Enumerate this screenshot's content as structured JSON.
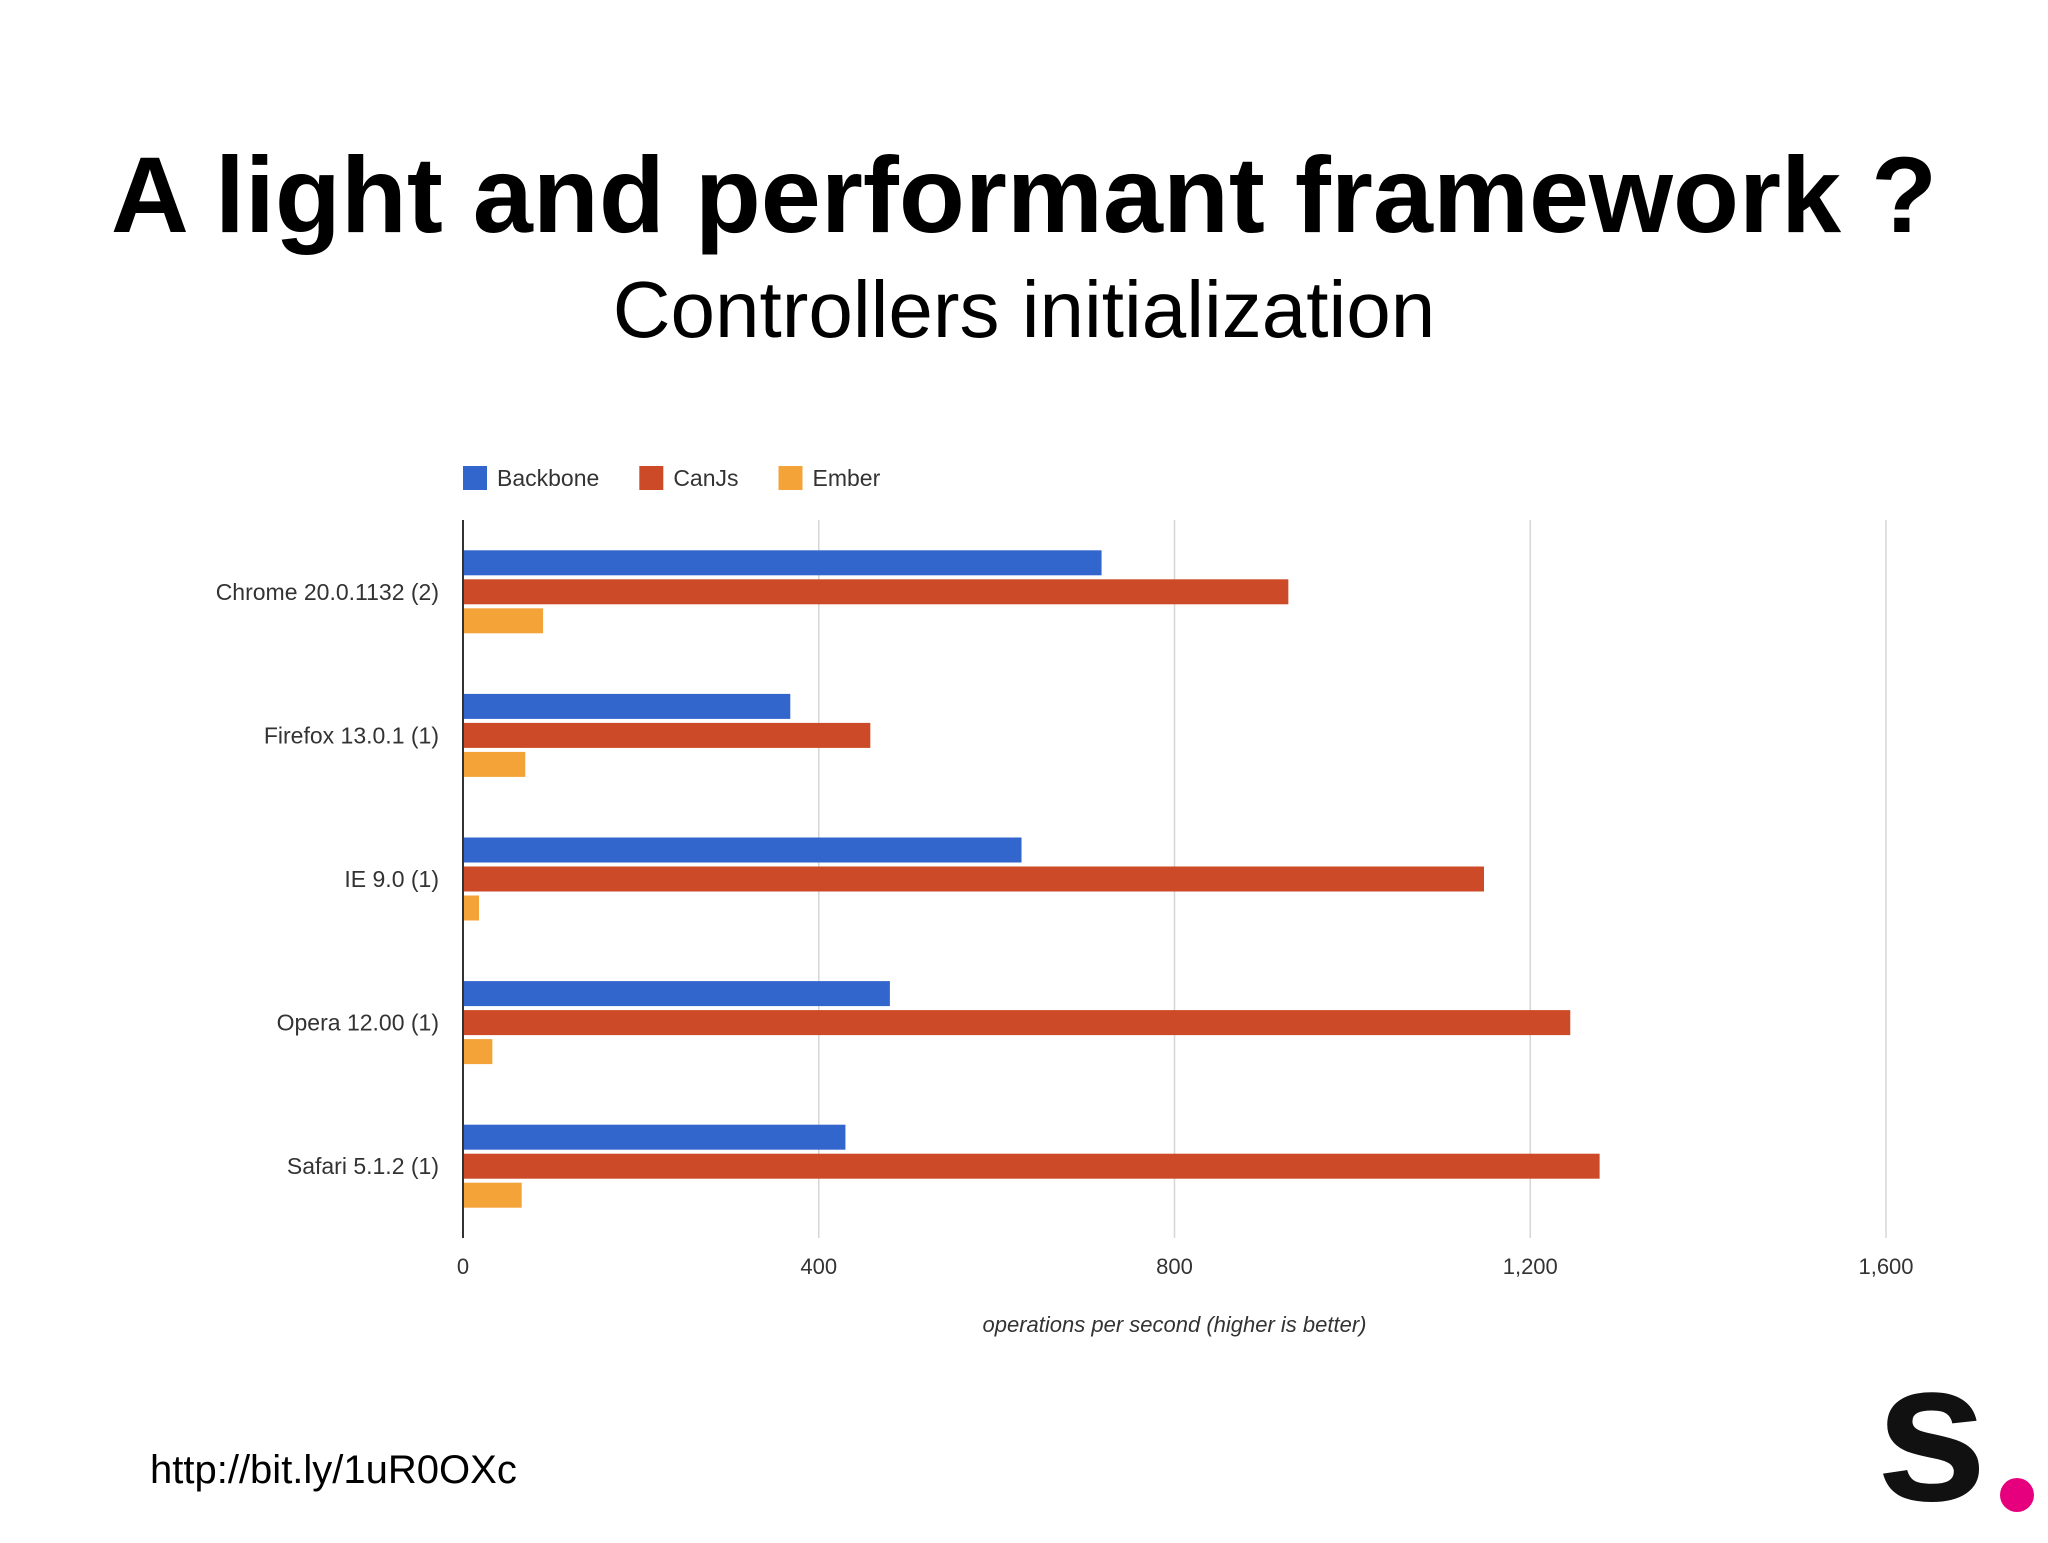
{
  "slide": {
    "title": "A light and performant framework ?",
    "subtitle": "Controllers initialization",
    "source_link": "http://bit.ly/1uR0OXc",
    "logo_letter": "s",
    "logo_dot_color": "#e6007e"
  },
  "chart_data": {
    "type": "bar",
    "orientation": "horizontal",
    "categories": [
      "Chrome 20.0.1132 (2)",
      "Firefox 13.0.1 (1)",
      "IE 9.0 (1)",
      "Opera 12.00 (1)",
      "Safari 5.1.2 (1)"
    ],
    "series": [
      {
        "name": "Backbone",
        "color": "#3366cc",
        "values": [
          718,
          368,
          628,
          480,
          430
        ]
      },
      {
        "name": "CanJs",
        "color": "#cc4a27",
        "values": [
          928,
          458,
          1148,
          1245,
          1278
        ]
      },
      {
        "name": "Ember",
        "color": "#f4a339",
        "values": [
          90,
          70,
          18,
          33,
          66
        ]
      }
    ],
    "xlabel": "operations per second (higher is better)",
    "xlim": [
      0,
      1600
    ],
    "xticks": [
      0,
      400,
      800,
      1200,
      1600
    ],
    "xtick_labels": [
      "0",
      "400",
      "800",
      "1,200",
      "1,600"
    ],
    "legend_position": "top-left",
    "grid": true
  }
}
